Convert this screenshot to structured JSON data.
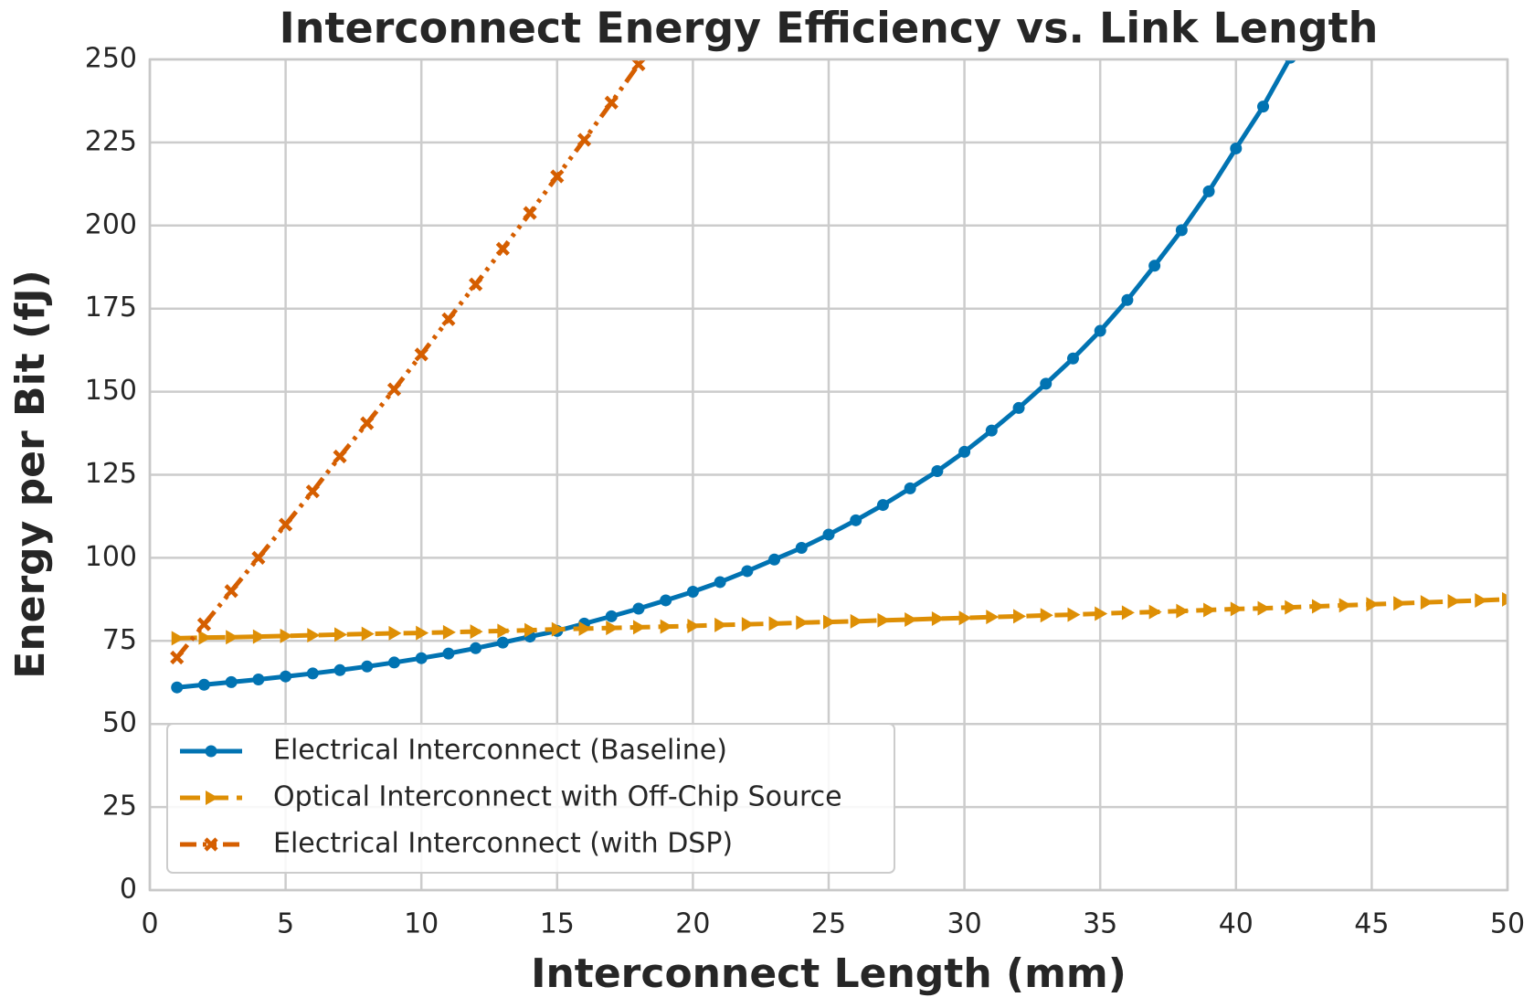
{
  "chart_data": {
    "type": "line",
    "title": "Interconnect Energy Efficiency vs. Link Length",
    "xlabel": "Interconnect Length (mm)",
    "ylabel": "Energy per Bit (fJ)",
    "xlim": [
      0,
      50
    ],
    "xticks": [
      0,
      5,
      10,
      15,
      20,
      25,
      30,
      35,
      40,
      45,
      50
    ],
    "ylim": [
      0,
      250
    ],
    "yticks": [
      0,
      25,
      50,
      75,
      100,
      125,
      150,
      175,
      200,
      225,
      250
    ],
    "grid": true,
    "legend": "lower left",
    "series": [
      {
        "name": "Electrical Interconnect (Baseline)",
        "color": "#0173b2",
        "linestyle": "solid",
        "marker": "circle",
        "x": [
          1,
          2,
          3,
          4,
          5,
          6,
          7,
          8,
          9,
          10,
          11,
          12,
          13,
          14,
          15,
          16,
          17,
          18,
          19,
          20,
          21,
          22,
          23,
          24,
          25,
          26,
          27,
          28,
          29,
          30,
          31,
          32,
          33,
          34,
          35,
          36,
          37,
          38,
          39,
          40,
          41,
          42
        ],
        "values": [
          61,
          61.8,
          62.6,
          63.4,
          64.3,
          65.2,
          66.2,
          67.3,
          68.5,
          69.8,
          71.2,
          72.8,
          74.5,
          76.3,
          78,
          80.2,
          82.4,
          84.7,
          87.2,
          89.8,
          92.7,
          96,
          99.5,
          103,
          107,
          111.3,
          115.9,
          120.9,
          126.1,
          131.9,
          138.3,
          145.1,
          152.4,
          160,
          168.3,
          177.6,
          187.9,
          198.6,
          210.3,
          223.2,
          235.8,
          250.5
        ]
      },
      {
        "name": "Optical Interconnect with Off-Chip Source",
        "color": "#de8f05",
        "linestyle": "dashed",
        "marker": "triangle-right",
        "x": [
          1,
          2,
          3,
          4,
          5,
          6,
          7,
          8,
          9,
          10,
          11,
          12,
          13,
          14,
          15,
          16,
          17,
          18,
          19,
          20,
          21,
          22,
          23,
          24,
          25,
          26,
          27,
          28,
          29,
          30,
          31,
          32,
          33,
          34,
          35,
          36,
          37,
          38,
          39,
          40,
          41,
          42,
          43,
          44,
          45,
          46,
          47,
          48,
          49,
          50
        ],
        "values": [
          75.8,
          76.0,
          76.1,
          76.3,
          76.5,
          76.7,
          76.9,
          77.1,
          77.3,
          77.4,
          77.6,
          77.8,
          78.0,
          78.2,
          78.5,
          78.7,
          78.9,
          79.1,
          79.3,
          79.5,
          79.8,
          80.0,
          80.2,
          80.5,
          80.7,
          80.9,
          81.2,
          81.4,
          81.7,
          81.9,
          82.2,
          82.4,
          82.7,
          82.9,
          83.2,
          83.5,
          83.7,
          84.0,
          84.3,
          84.6,
          84.8,
          85.1,
          85.4,
          85.7,
          86.0,
          86.3,
          86.6,
          86.9,
          87.2,
          87.5
        ]
      },
      {
        "name": "Electrical Interconnect (with DSP)",
        "color": "#d55e00",
        "linestyle": "dashdotdot",
        "marker": "x",
        "x": [
          1,
          2,
          3,
          4,
          5,
          6,
          7,
          8,
          9,
          10,
          11,
          12,
          13,
          14,
          15,
          16,
          17,
          18
        ],
        "values": [
          70,
          80,
          90,
          100,
          110,
          120,
          130.5,
          140.5,
          150.7,
          161.2,
          171.8,
          182.3,
          193,
          203.8,
          214.8,
          225.8,
          237,
          248.5
        ]
      }
    ]
  }
}
